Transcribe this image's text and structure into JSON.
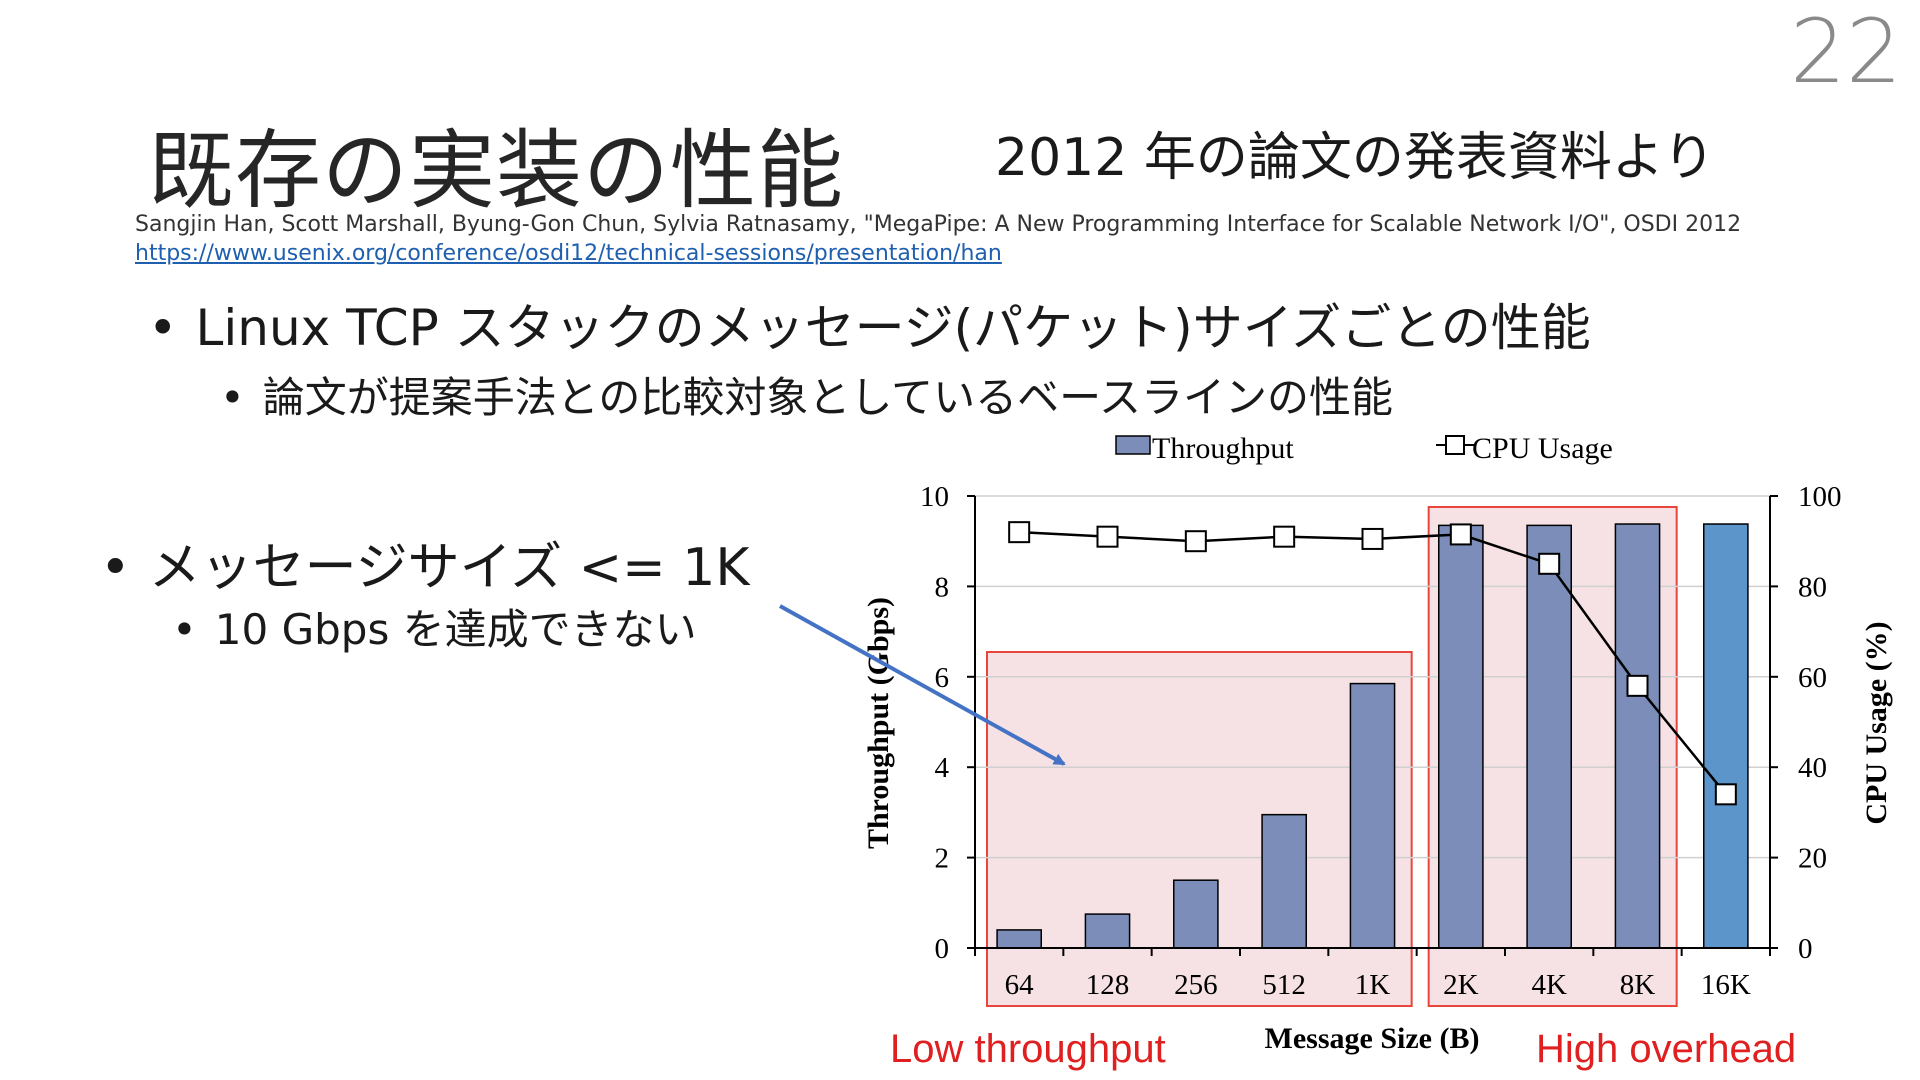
{
  "page_number": "22",
  "title": "既存の実装の性能",
  "subtitle": "2012 年の論文の発表資料より",
  "citation": "Sangjin Han, Scott Marshall, Byung-Gon Chun, Sylvia Ratnasamy, \"MegaPipe: A New Programming Interface for Scalable Network I/O\", OSDI 2012",
  "citation_link": "https://www.usenix.org/conference/osdi12/technical-sessions/presentation/han",
  "bullets": {
    "b1": "Linux TCP スタックのメッセージ(パケット)サイズごとの性能",
    "b1_1": "論文が提案手法との比較対象としているベースラインの性能",
    "b2": "メッセージサイズ <= 1K",
    "b2_1": "10 Gbps を達成できない"
  },
  "bullet_symbol": "•",
  "annotations": {
    "low": "Low throughput",
    "high": "High overhead"
  },
  "colors": {
    "bar": "#7b8db8",
    "bar_last": "#5b95c9",
    "highlight_fill": "#f4dcdf",
    "highlight_stroke": "#e8463c",
    "annotation_text": "#e02020",
    "arrow": "#4472c4",
    "link": "#1f5fb0"
  },
  "chart_data": {
    "type": "bar",
    "categories": [
      "64",
      "128",
      "256",
      "512",
      "1K",
      "2K",
      "4K",
      "8K",
      "16K"
    ],
    "series": [
      {
        "name": "Throughput",
        "type": "bar",
        "axis": "left",
        "values": [
          0.4,
          0.75,
          1.5,
          2.95,
          5.85,
          9.35,
          9.35,
          9.38,
          9.38
        ]
      },
      {
        "name": "CPU Usage",
        "type": "line",
        "axis": "right",
        "values": [
          92,
          91,
          90,
          91,
          90.5,
          91.5,
          85,
          58,
          34
        ]
      }
    ],
    "xlabel": "Message Size (B)",
    "ylabel": "Throughput (Gbps)",
    "y2label": "CPU Usage (%)",
    "ylim": [
      0,
      10
    ],
    "y2lim": [
      0,
      100
    ],
    "yticks": [
      "0",
      "2",
      "4",
      "6",
      "8",
      "10"
    ],
    "y2ticks": [
      "0",
      "20",
      "40",
      "60",
      "80",
      "100"
    ],
    "grid": true,
    "legend_position": "top",
    "highlight_groups": [
      [
        "64",
        "1K"
      ],
      [
        "2K",
        "8K"
      ]
    ]
  }
}
